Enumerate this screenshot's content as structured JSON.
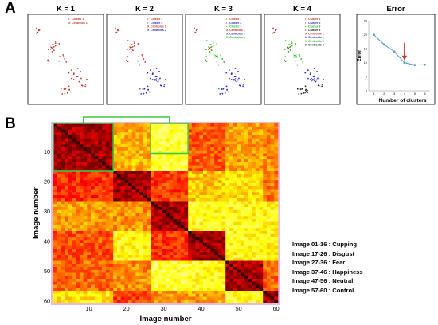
{
  "panels": {
    "a_label": "A",
    "b_label": "B"
  },
  "chart_data": [
    {
      "type": "scatter",
      "panel": "A",
      "subplots": [
        {
          "title": "K = 1",
          "legend": [
            "Cluster 1",
            "Centroids 1"
          ],
          "colors": [
            "#c0392b"
          ]
        },
        {
          "title": "K = 2",
          "legend": [
            "Cluster 1",
            "Cluster 2",
            "Centroids 1",
            "Centroids 2"
          ],
          "colors": [
            "#c0392b",
            "#2a2ad0"
          ]
        },
        {
          "title": "K = 3",
          "legend": [
            "Cluster 1",
            "Cluster 2",
            "Cluster 3",
            "Centroids 1",
            "Centroids 2",
            "Centroids 3"
          ],
          "colors": [
            "#c0392b",
            "#2a2ad0",
            "#1ec01e"
          ]
        },
        {
          "title": "K = 4",
          "legend": [
            "Cluster 1",
            "Cluster 2",
            "Cluster 3",
            "Cluster 4",
            "Centroids 1",
            "Centroids 2",
            "Centroids 3",
            "Centroids 4"
          ],
          "colors": [
            "#c0392b",
            "#2a2ad0",
            "#1ec01e",
            "#222222"
          ]
        }
      ]
    },
    {
      "type": "line",
      "panel": "A",
      "title": "Error",
      "xlabel": "Number of clusters",
      "ylabel": "Error",
      "x": [
        1,
        2,
        3,
        4,
        5,
        6
      ],
      "y": [
        20,
        16.5,
        14,
        10,
        9.2,
        9.3
      ],
      "xlim": [
        0.5,
        6.5
      ],
      "ylim": [
        0,
        25
      ],
      "xticks": [
        "1",
        "2",
        "3",
        "4",
        "5",
        "6"
      ],
      "yticks": [
        "0",
        "5",
        "10",
        "15",
        "20",
        "25"
      ],
      "arrow_at_x": 4,
      "line_color": "#5b9bd5",
      "arrow_color": "#c0392b"
    },
    {
      "type": "heatmap",
      "panel": "B",
      "xlabel": "Image number",
      "ylabel": "Image number",
      "size": 60,
      "xticks": [
        "10",
        "20",
        "30",
        "40",
        "50",
        "60"
      ],
      "yticks": [
        "10",
        "20",
        "30",
        "40",
        "50",
        "60"
      ],
      "groups": [
        {
          "range": [
            1,
            16
          ],
          "label": "Image 01-16 : Cupping"
        },
        {
          "range": [
            17,
            26
          ],
          "label": "Image 17-26 : Disgust"
        },
        {
          "range": [
            27,
            36
          ],
          "label": "Image 27-36 : Fear"
        },
        {
          "range": [
            37,
            46
          ],
          "label": "Image 37-46 : Happiness"
        },
        {
          "range": [
            47,
            56
          ],
          "label": "Image 47-56 : Neutral"
        },
        {
          "range": [
            57,
            60
          ],
          "label": "Image 57-60 : Control"
        }
      ],
      "highlighted_groups": [
        1,
        3
      ],
      "highlight_color": "#3cc83c"
    }
  ]
}
